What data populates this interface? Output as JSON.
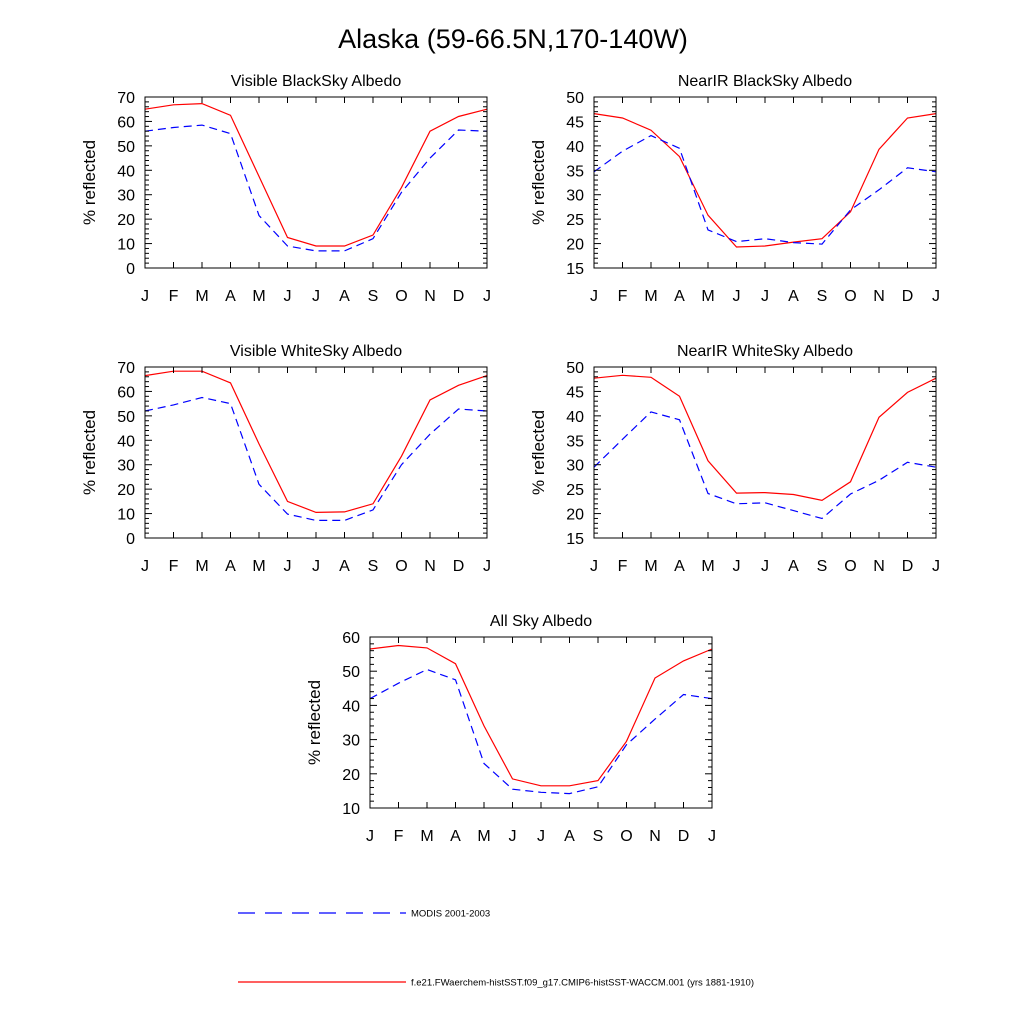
{
  "title": "Alaska (59-66.5N,170-140W)",
  "legend": [
    {
      "label": "MODIS 2001-2003",
      "color": "#0000ff",
      "dash": true
    },
    {
      "label": "f.e21.FWaerchem-histSST.f09_g17.CMIP6-histSST-WACCM.001 (yrs 1881-1910)",
      "color": "#ff0000",
      "dash": false
    }
  ],
  "chart_data": [
    {
      "type": "line",
      "title": "Visible BlackSky Albedo",
      "ylabel": "% reflected",
      "categories": [
        "J",
        "F",
        "M",
        "A",
        "M",
        "J",
        "J",
        "A",
        "S",
        "O",
        "N",
        "D",
        "J"
      ],
      "ylim": [
        0,
        70
      ],
      "yticks": [
        0,
        10,
        20,
        30,
        40,
        50,
        60,
        70
      ],
      "series": [
        {
          "name": "f.e21.FWaerchem-histSST.f09_g17.CMIP6-histSST-WACCM.001 (yrs 1881-1910)",
          "color": "#ff0000",
          "dash": false,
          "values": [
            65,
            66.8,
            67.3,
            62.5,
            37.5,
            12.5,
            9,
            9,
            13.5,
            33,
            56,
            62,
            65
          ]
        },
        {
          "name": "MODIS 2001-2003",
          "color": "#0000ff",
          "dash": true,
          "values": [
            56,
            57.5,
            58.5,
            55,
            21.5,
            9,
            7,
            7,
            12,
            31,
            45,
            56.5,
            56
          ]
        }
      ]
    },
    {
      "type": "line",
      "title": "NearIR BlackSky Albedo",
      "ylabel": "% reflected",
      "categories": [
        "J",
        "F",
        "M",
        "A",
        "M",
        "J",
        "J",
        "A",
        "S",
        "O",
        "N",
        "D",
        "J"
      ],
      "ylim": [
        15,
        50
      ],
      "yticks": [
        15,
        20,
        25,
        30,
        35,
        40,
        45,
        50
      ],
      "series": [
        {
          "name": "f.e21.FWaerchem-histSST.f09_g17.CMIP6-histSST-WACCM.001 (yrs 1881-1910)",
          "color": "#ff0000",
          "dash": false,
          "values": [
            46.6,
            45.7,
            43.2,
            37.8,
            25.8,
            19.3,
            19.5,
            20.3,
            21,
            26.5,
            39.3,
            45.7,
            46.6
          ]
        },
        {
          "name": "MODIS 2001-2003",
          "color": "#0000ff",
          "dash": true,
          "values": [
            34.7,
            38.9,
            42.1,
            39.5,
            22.8,
            20.4,
            21,
            20.2,
            19.9,
            26.9,
            31,
            35.5,
            34.7
          ]
        }
      ]
    },
    {
      "type": "line",
      "title": "Visible WhiteSky Albedo",
      "ylabel": "% reflected",
      "categories": [
        "J",
        "F",
        "M",
        "A",
        "M",
        "J",
        "J",
        "A",
        "S",
        "O",
        "N",
        "D",
        "J"
      ],
      "ylim": [
        0,
        70
      ],
      "yticks": [
        0,
        10,
        20,
        30,
        40,
        50,
        60,
        70
      ],
      "series": [
        {
          "name": "f.e21.FWaerchem-histSST.f09_g17.CMIP6-histSST-WACCM.001 (yrs 1881-1910)",
          "color": "#ff0000",
          "dash": false,
          "values": [
            66.5,
            68.3,
            68.3,
            63.5,
            38.5,
            15,
            10.5,
            10.7,
            14,
            33.5,
            56.5,
            62.5,
            66.5
          ]
        },
        {
          "name": "MODIS 2001-2003",
          "color": "#0000ff",
          "dash": true,
          "values": [
            52,
            54.5,
            57.5,
            55,
            22,
            9.8,
            7.2,
            7.2,
            11.5,
            30,
            42.5,
            52.8,
            52
          ]
        }
      ]
    },
    {
      "type": "line",
      "title": "NearIR WhiteSky Albedo",
      "ylabel": "% reflected",
      "categories": [
        "J",
        "F",
        "M",
        "A",
        "M",
        "J",
        "J",
        "A",
        "S",
        "O",
        "N",
        "D",
        "J"
      ],
      "ylim": [
        15,
        50
      ],
      "yticks": [
        15,
        20,
        25,
        30,
        35,
        40,
        45,
        50
      ],
      "series": [
        {
          "name": "f.e21.FWaerchem-histSST.f09_g17.CMIP6-histSST-WACCM.001 (yrs 1881-1910)",
          "color": "#ff0000",
          "dash": false,
          "values": [
            47.7,
            48.3,
            47.9,
            44,
            30.8,
            24.2,
            24.3,
            23.9,
            22.7,
            26.5,
            39.7,
            44.8,
            47.7
          ]
        },
        {
          "name": "MODIS 2001-2003",
          "color": "#0000ff",
          "dash": true,
          "values": [
            29.5,
            35.2,
            40.8,
            39.2,
            24.1,
            22,
            22.2,
            20.6,
            19,
            24,
            26.8,
            30.5,
            29.5
          ]
        }
      ]
    },
    {
      "type": "line",
      "title": "All Sky Albedo",
      "ylabel": "% reflected",
      "categories": [
        "J",
        "F",
        "M",
        "A",
        "M",
        "J",
        "J",
        "A",
        "S",
        "O",
        "N",
        "D",
        "J"
      ],
      "ylim": [
        10,
        60
      ],
      "yticks": [
        10,
        20,
        30,
        40,
        50,
        60
      ],
      "series": [
        {
          "name": "f.e21.FWaerchem-histSST.f09_g17.CMIP6-histSST-WACCM.001 (yrs 1881-1910)",
          "color": "#ff0000",
          "dash": false,
          "values": [
            56.5,
            57.5,
            56.8,
            52.2,
            34,
            18.5,
            16.5,
            16.5,
            18,
            29.5,
            48,
            53,
            56.5
          ]
        },
        {
          "name": "MODIS 2001-2003",
          "color": "#0000ff",
          "dash": true,
          "values": [
            42,
            46.5,
            50.5,
            47.5,
            23,
            15.5,
            14.6,
            14.2,
            16.2,
            28.5,
            36,
            43.2,
            42
          ]
        }
      ]
    }
  ]
}
